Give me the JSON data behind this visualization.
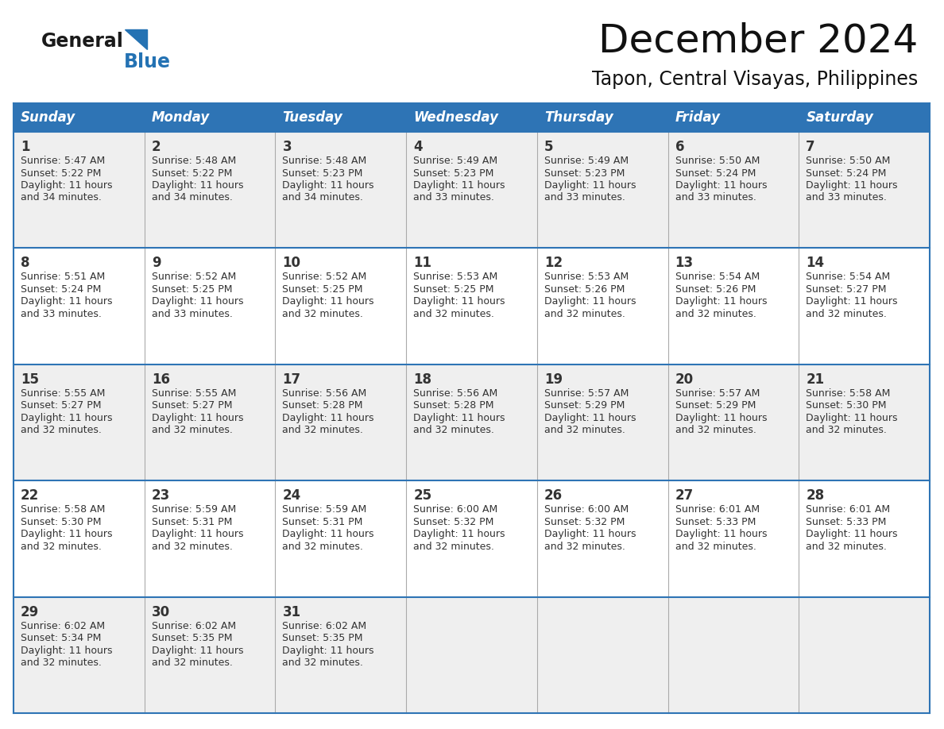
{
  "title": "December 2024",
  "subtitle": "Tapon, Central Visayas, Philippines",
  "days_of_week": [
    "Sunday",
    "Monday",
    "Tuesday",
    "Wednesday",
    "Thursday",
    "Friday",
    "Saturday"
  ],
  "header_bg": "#2E74B5",
  "header_text_color": "#FFFFFF",
  "cell_bg_light": "#EFEFEF",
  "cell_bg_white": "#FFFFFF",
  "border_color": "#2E74B5",
  "row_sep_color": "#2E74B5",
  "col_sep_color": "#AAAAAA",
  "text_color": "#333333",
  "calendar_data": [
    [
      {
        "day": 1,
        "sunrise": "5:47 AM",
        "sunset": "5:22 PM",
        "daylight_hours": 11,
        "daylight_minutes": 34
      },
      {
        "day": 2,
        "sunrise": "5:48 AM",
        "sunset": "5:22 PM",
        "daylight_hours": 11,
        "daylight_minutes": 34
      },
      {
        "day": 3,
        "sunrise": "5:48 AM",
        "sunset": "5:23 PM",
        "daylight_hours": 11,
        "daylight_minutes": 34
      },
      {
        "day": 4,
        "sunrise": "5:49 AM",
        "sunset": "5:23 PM",
        "daylight_hours": 11,
        "daylight_minutes": 33
      },
      {
        "day": 5,
        "sunrise": "5:49 AM",
        "sunset": "5:23 PM",
        "daylight_hours": 11,
        "daylight_minutes": 33
      },
      {
        "day": 6,
        "sunrise": "5:50 AM",
        "sunset": "5:24 PM",
        "daylight_hours": 11,
        "daylight_minutes": 33
      },
      {
        "day": 7,
        "sunrise": "5:50 AM",
        "sunset": "5:24 PM",
        "daylight_hours": 11,
        "daylight_minutes": 33
      }
    ],
    [
      {
        "day": 8,
        "sunrise": "5:51 AM",
        "sunset": "5:24 PM",
        "daylight_hours": 11,
        "daylight_minutes": 33
      },
      {
        "day": 9,
        "sunrise": "5:52 AM",
        "sunset": "5:25 PM",
        "daylight_hours": 11,
        "daylight_minutes": 33
      },
      {
        "day": 10,
        "sunrise": "5:52 AM",
        "sunset": "5:25 PM",
        "daylight_hours": 11,
        "daylight_minutes": 32
      },
      {
        "day": 11,
        "sunrise": "5:53 AM",
        "sunset": "5:25 PM",
        "daylight_hours": 11,
        "daylight_minutes": 32
      },
      {
        "day": 12,
        "sunrise": "5:53 AM",
        "sunset": "5:26 PM",
        "daylight_hours": 11,
        "daylight_minutes": 32
      },
      {
        "day": 13,
        "sunrise": "5:54 AM",
        "sunset": "5:26 PM",
        "daylight_hours": 11,
        "daylight_minutes": 32
      },
      {
        "day": 14,
        "sunrise": "5:54 AM",
        "sunset": "5:27 PM",
        "daylight_hours": 11,
        "daylight_minutes": 32
      }
    ],
    [
      {
        "day": 15,
        "sunrise": "5:55 AM",
        "sunset": "5:27 PM",
        "daylight_hours": 11,
        "daylight_minutes": 32
      },
      {
        "day": 16,
        "sunrise": "5:55 AM",
        "sunset": "5:27 PM",
        "daylight_hours": 11,
        "daylight_minutes": 32
      },
      {
        "day": 17,
        "sunrise": "5:56 AM",
        "sunset": "5:28 PM",
        "daylight_hours": 11,
        "daylight_minutes": 32
      },
      {
        "day": 18,
        "sunrise": "5:56 AM",
        "sunset": "5:28 PM",
        "daylight_hours": 11,
        "daylight_minutes": 32
      },
      {
        "day": 19,
        "sunrise": "5:57 AM",
        "sunset": "5:29 PM",
        "daylight_hours": 11,
        "daylight_minutes": 32
      },
      {
        "day": 20,
        "sunrise": "5:57 AM",
        "sunset": "5:29 PM",
        "daylight_hours": 11,
        "daylight_minutes": 32
      },
      {
        "day": 21,
        "sunrise": "5:58 AM",
        "sunset": "5:30 PM",
        "daylight_hours": 11,
        "daylight_minutes": 32
      }
    ],
    [
      {
        "day": 22,
        "sunrise": "5:58 AM",
        "sunset": "5:30 PM",
        "daylight_hours": 11,
        "daylight_minutes": 32
      },
      {
        "day": 23,
        "sunrise": "5:59 AM",
        "sunset": "5:31 PM",
        "daylight_hours": 11,
        "daylight_minutes": 32
      },
      {
        "day": 24,
        "sunrise": "5:59 AM",
        "sunset": "5:31 PM",
        "daylight_hours": 11,
        "daylight_minutes": 32
      },
      {
        "day": 25,
        "sunrise": "6:00 AM",
        "sunset": "5:32 PM",
        "daylight_hours": 11,
        "daylight_minutes": 32
      },
      {
        "day": 26,
        "sunrise": "6:00 AM",
        "sunset": "5:32 PM",
        "daylight_hours": 11,
        "daylight_minutes": 32
      },
      {
        "day": 27,
        "sunrise": "6:01 AM",
        "sunset": "5:33 PM",
        "daylight_hours": 11,
        "daylight_minutes": 32
      },
      {
        "day": 28,
        "sunrise": "6:01 AM",
        "sunset": "5:33 PM",
        "daylight_hours": 11,
        "daylight_minutes": 32
      }
    ],
    [
      {
        "day": 29,
        "sunrise": "6:02 AM",
        "sunset": "5:34 PM",
        "daylight_hours": 11,
        "daylight_minutes": 32
      },
      {
        "day": 30,
        "sunrise": "6:02 AM",
        "sunset": "5:35 PM",
        "daylight_hours": 11,
        "daylight_minutes": 32
      },
      {
        "day": 31,
        "sunrise": "6:02 AM",
        "sunset": "5:35 PM",
        "daylight_hours": 11,
        "daylight_minutes": 32
      },
      null,
      null,
      null,
      null
    ]
  ],
  "logo_general_color": "#1a1a1a",
  "logo_blue_color": "#2472B3",
  "fig_width": 11.88,
  "fig_height": 9.18,
  "dpi": 100
}
